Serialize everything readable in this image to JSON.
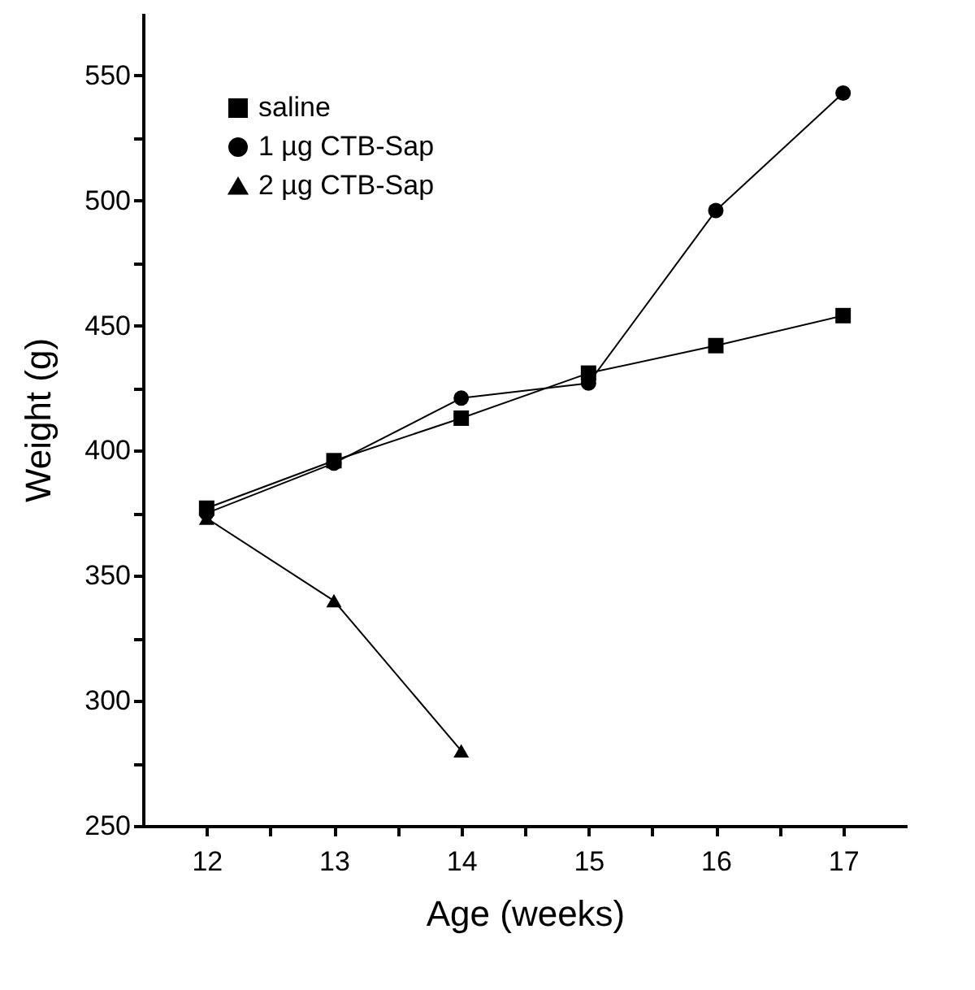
{
  "chart_data": {
    "type": "line",
    "xlabel": "Age (weeks)",
    "ylabel": "Weight (g)",
    "xlim": [
      11.5,
      17.5
    ],
    "xticks": [
      12,
      {
        "value": 12.5,
        "label": null
      },
      13,
      {
        "value": 13.5,
        "label": null
      },
      14,
      {
        "value": 14.5,
        "label": null
      },
      15,
      {
        "value": 15.5,
        "label": null
      },
      16,
      {
        "value": 16.5,
        "label": null
      },
      17
    ],
    "ylim": [
      250,
      575
    ],
    "yticks": [
      250,
      {
        "value": 275,
        "label": null
      },
      300,
      {
        "value": 325,
        "label": null
      },
      350,
      {
        "value": 375,
        "label": null
      },
      400,
      {
        "value": 425,
        "label": null
      },
      450,
      {
        "value": 475,
        "label": null
      },
      500,
      {
        "value": 525,
        "label": null
      },
      550
    ],
    "legend": "top left",
    "grid": false,
    "series": [
      {
        "name": "saline",
        "color": "#000000",
        "marker": "square",
        "x": [
          12,
          13,
          14,
          15,
          16,
          17
        ],
        "values": [
          377,
          396,
          413,
          431,
          442,
          454
        ]
      },
      {
        "name": "1 µg CTB-Sap",
        "color": "#000000",
        "marker": "circle",
        "x": [
          12,
          13,
          14,
          15,
          16,
          17
        ],
        "values": [
          375,
          395,
          421,
          427,
          496,
          543
        ]
      },
      {
        "name": "2 µg CTB-Sap",
        "color": "#000000",
        "marker": "triangle",
        "x": [
          12,
          13,
          14
        ],
        "values": [
          373,
          340,
          280
        ]
      }
    ]
  }
}
